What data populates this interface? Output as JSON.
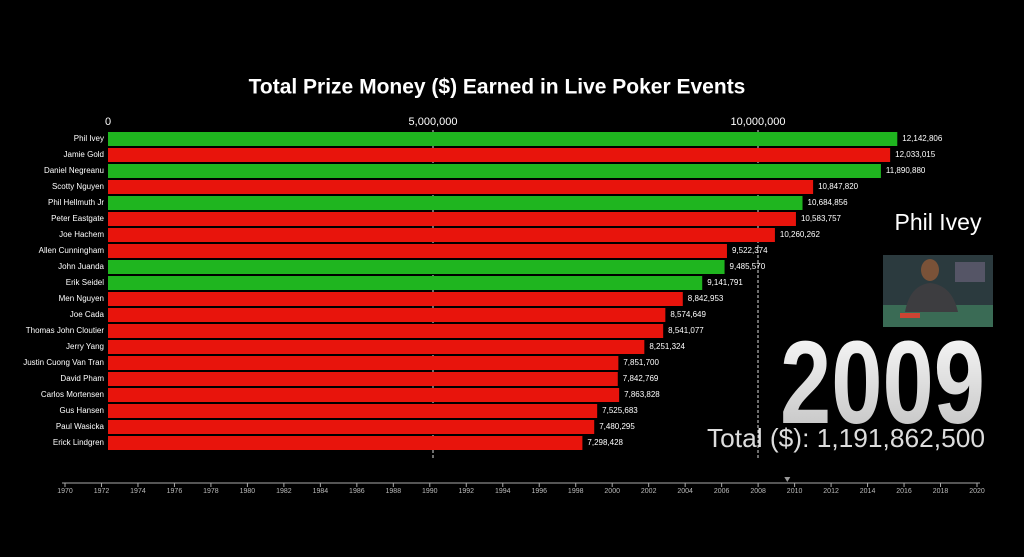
{
  "chart_data": {
    "type": "bar",
    "orientation": "horizontal",
    "title": "Total Prize Money ($) Earned in Live Poker Events",
    "categories": [
      "Phil Ivey",
      "Jamie Gold",
      "Daniel Negreanu",
      "Scotty Nguyen",
      "Phil Hellmuth Jr",
      "Peter Eastgate",
      "Joe Hachem",
      "Allen Cunningham",
      "John Juanda",
      "Erik Seidel",
      "Men Nguyen",
      "Joe Cada",
      "Thomas John Cloutier",
      "Jerry Yang",
      "Justin Cuong Van Tran",
      "David Pham",
      "Carlos Mortensen",
      "Gus Hansen",
      "Paul Wasicka",
      "Erick Lindgren"
    ],
    "values": [
      12142806,
      12033015,
      11890880,
      10847820,
      10684856,
      10583757,
      10260262,
      9522374,
      9485570,
      9141791,
      8842953,
      8574649,
      8541077,
      8251324,
      7851700,
      7842769,
      7863828,
      7525683,
      7480295,
      7298428
    ],
    "value_labels": [
      "12,142,806",
      "12,033,015",
      "11,890,880",
      "10,847,820",
      "10,684,856",
      "10,583,757",
      "10,260,262",
      "9,522,374",
      "9,485,570",
      "9,141,791",
      "8,842,953",
      "8,574,649",
      "8,541,077",
      "8,251,324",
      "7,851,700",
      "7,842,769",
      "7,863,828",
      "7,525,683",
      "7,480,295",
      "7,298,428"
    ],
    "colors": [
      "#1fb51f",
      "#e8140c",
      "#1fb51f",
      "#e8140c",
      "#1fb51f",
      "#e8140c",
      "#e8140c",
      "#e8140c",
      "#1fb51f",
      "#1fb51f",
      "#e8140c",
      "#e8140c",
      "#e8140c",
      "#e8140c",
      "#e8140c",
      "#e8140c",
      "#e8140c",
      "#e8140c",
      "#e8140c",
      "#e8140c"
    ],
    "xlim": [
      0,
      14000000
    ],
    "xticks": [
      0,
      {
        "value": 5000000,
        "label": "5,000,000"
      },
      {
        "value": 10000000,
        "label": "10,000,000"
      }
    ],
    "grid": true
  },
  "leader": "Phil Ivey",
  "year": 2009,
  "total_label": "Total ($): 1,191,862,500",
  "timeline": {
    "xlim": [
      1970,
      2020
    ],
    "xticks": [
      1970,
      1972,
      1974,
      1976,
      1978,
      1980,
      1982,
      1984,
      1986,
      1988,
      1990,
      1992,
      1994,
      1996,
      1998,
      2000,
      2002,
      2004,
      2006,
      2008,
      2010,
      2012,
      2014,
      2016,
      2018,
      2020
    ],
    "position": 2009.6
  }
}
